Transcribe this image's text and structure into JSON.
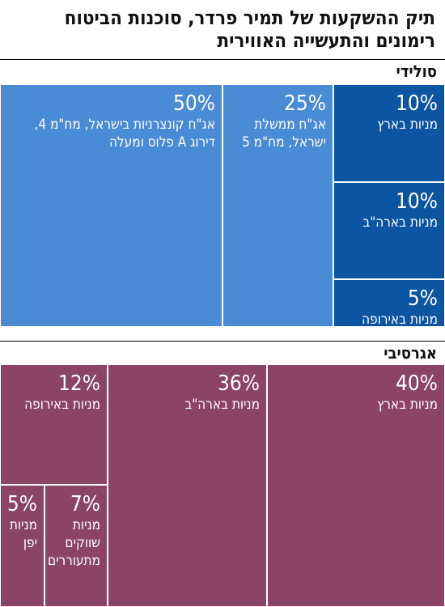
{
  "title_line1": "תיק ההשקעות של תמיר פרדר, סוכנות הביטוח",
  "title_line2": "רימונים והתעשייה האווירית",
  "chart_data": [
    {
      "type": "treemap",
      "name": "סולידי",
      "cells": [
        {
          "label": "אג\"ח קונצרניות בישראל, מח\"מ 4,\nדירוג A פלוס ומעלה",
          "value": 50,
          "value_label": "50%",
          "color": "#4a8bd6"
        },
        {
          "label": "אג\"ח ממשלת\nישראל, מח\"מ 5",
          "value": 25,
          "value_label": "25%",
          "color": "#4a8bd6"
        },
        {
          "label": "מניות בארץ",
          "value": 10,
          "value_label": "10%",
          "color": "#0b55a3"
        },
        {
          "label": "מניות בארה\"ב",
          "value": 10,
          "value_label": "10%",
          "color": "#0b55a3"
        },
        {
          "label": "מניות באירופה",
          "value": 5,
          "value_label": "5%",
          "color": "#0b55a3"
        }
      ]
    },
    {
      "type": "treemap",
      "name": "אגרסיבי",
      "cells": [
        {
          "label": "מניות בארץ",
          "value": 40,
          "value_label": "40%",
          "color": "#8b4466"
        },
        {
          "label": "מניות בארה\"ב",
          "value": 36,
          "value_label": "36%",
          "color": "#8b4466"
        },
        {
          "label": "מניות באירופה",
          "value": 12,
          "value_label": "12%",
          "color": "#8b4466"
        },
        {
          "label": "מניות\nשווקים\nמתעוררים",
          "value": 7,
          "value_label": "7%",
          "color": "#8b4466"
        },
        {
          "label": "מניות\nיפן",
          "value": 5,
          "value_label": "5%",
          "color": "#8b4466"
        }
      ]
    }
  ]
}
